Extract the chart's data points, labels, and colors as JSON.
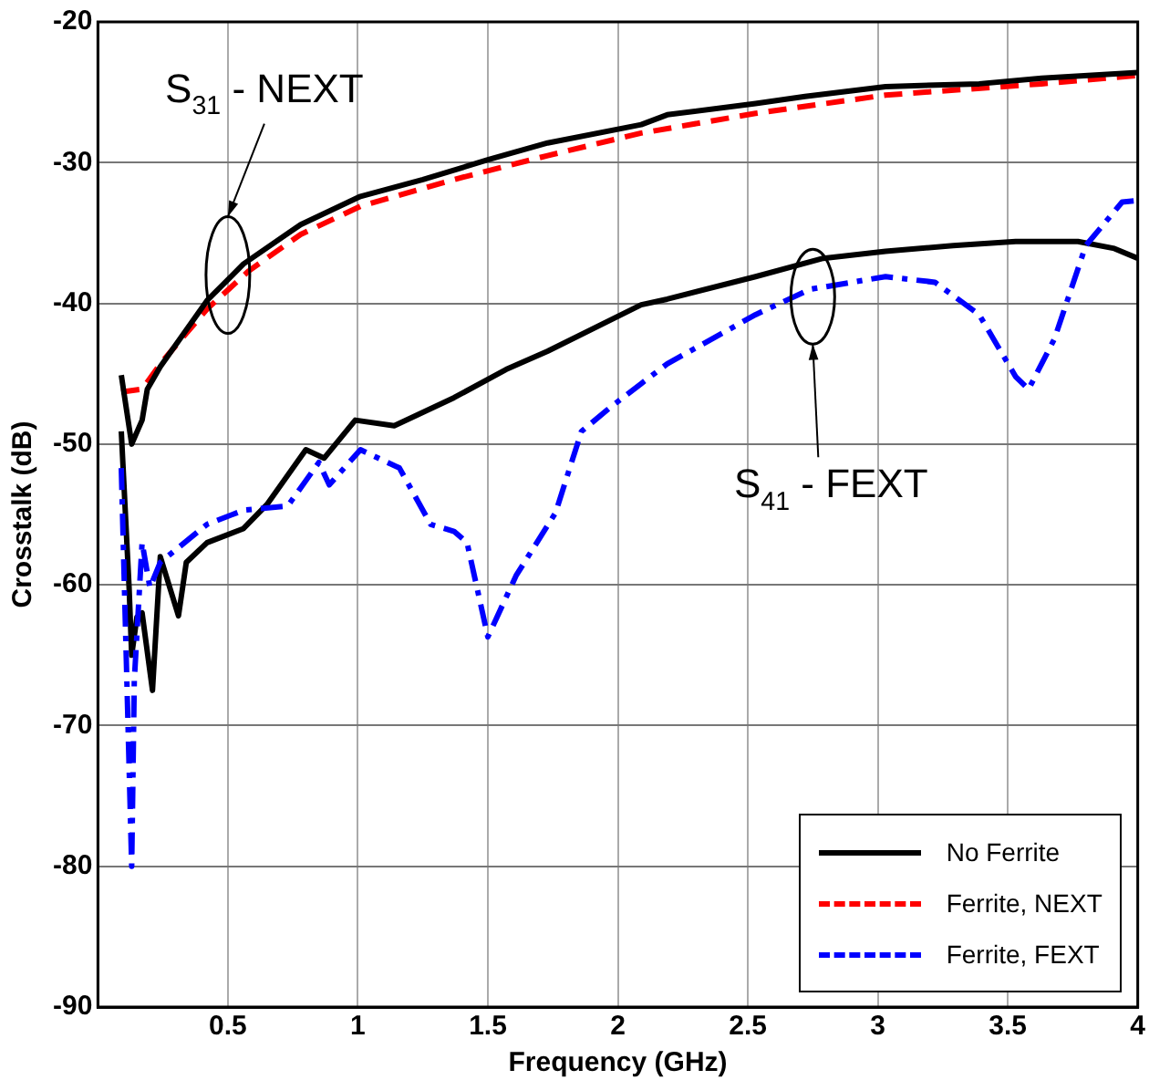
{
  "chart_data": {
    "type": "line",
    "xlabel": "Frequency (GHz)",
    "ylabel": "Crosstalk (dB)",
    "xlim": [
      0,
      4
    ],
    "xticks": [
      0.5,
      1,
      1.5,
      2,
      2.5,
      3,
      3.5,
      4
    ],
    "ylim": [
      -90,
      -20
    ],
    "yticks": [
      -90,
      -80,
      -70,
      -60,
      -50,
      -40,
      -30,
      -20
    ],
    "grid": true,
    "legend": "bottom right",
    "marker": "none",
    "series": [
      {
        "name": "No Ferrite",
        "color": "#000000",
        "line_style": "solid",
        "x": [
          0.09,
          0.13,
          0.17,
          0.19,
          0.24,
          0.42,
          0.56,
          0.78,
          1.01,
          1.25,
          1.5,
          1.73,
          2.09,
          2.19,
          2.53,
          2.72,
          3.03,
          3.39,
          3.63,
          4.0
        ],
        "values": [
          -45.1,
          -50,
          -48.3,
          -46.1,
          -44.5,
          -39.8,
          -37.2,
          -34.4,
          -32.4,
          -31.2,
          -29.8,
          -28.6,
          -27.3,
          -26.6,
          -25.8,
          -25.3,
          -24.6,
          -24.4,
          -24,
          -23.6
        ]
      },
      {
        "name": "Ferrite, NEXT",
        "color": "#ff0000",
        "line_style": "dashed",
        "x": [
          0.09,
          0.17,
          0.24,
          0.42,
          0.58,
          0.78,
          1.01,
          1.37,
          1.73,
          2.09,
          2.53,
          3.03,
          3.63,
          4.0
        ],
        "values": [
          -46.3,
          -46.1,
          -44.3,
          -40.4,
          -37.7,
          -35.1,
          -33.1,
          -31.2,
          -29.5,
          -27.9,
          -26.5,
          -25.2,
          -24.4,
          -23.8
        ]
      },
      {
        "name": "Ferrite, FEXT",
        "color": "#0000ff",
        "line_style": "dashdot",
        "x": [
          0.09,
          0.13,
          0.14,
          0.17,
          0.2,
          0.24,
          0.42,
          0.56,
          0.73,
          0.85,
          0.89,
          1.01,
          1.16,
          1.28,
          1.37,
          1.42,
          1.5,
          1.61,
          1.76,
          1.86,
          1.97,
          2.09,
          2.19,
          2.53,
          2.74,
          3.03,
          3.22,
          3.39,
          3.53,
          3.58,
          3.68,
          3.8,
          3.94,
          4.0
        ],
        "values": [
          -51.7,
          -80,
          -66.8,
          -57,
          -60.2,
          -58.4,
          -55.7,
          -54.7,
          -54.4,
          -51.3,
          -52.9,
          -50.4,
          -51.7,
          -55.7,
          -56.2,
          -57,
          -63.7,
          -59.3,
          -54.9,
          -49.1,
          -47.4,
          -45.7,
          -44.3,
          -40.8,
          -39,
          -38.1,
          -38.5,
          -40.8,
          -45.2,
          -46.1,
          -42.5,
          -35.9,
          -32.8,
          -32.7
        ]
      },
      {
        "color": "#000000",
        "line_style": "solid",
        "x": [
          0.09,
          0.12,
          0.13,
          0.15,
          0.17,
          0.21,
          0.24,
          0.31,
          0.34,
          0.42,
          0.56,
          0.65,
          0.8,
          0.87,
          0.99,
          1.14,
          1.37,
          1.57,
          1.73,
          2.09,
          2.19,
          2.53,
          2.79,
          3.03,
          3.29,
          3.53,
          3.77,
          3.91,
          4.0
        ],
        "values": [
          -49.1,
          -60.2,
          -65,
          -62.3,
          -62,
          -67.5,
          -58,
          -62.2,
          -58.4,
          -57,
          -56,
          -54.3,
          -50.4,
          -51,
          -48.3,
          -48.7,
          -46.7,
          -44.7,
          -43.4,
          -40.1,
          -39.7,
          -38.1,
          -36.8,
          -36.3,
          -35.9,
          -35.6,
          -35.6,
          -36.1,
          -36.8
        ]
      }
    ],
    "annotations": [
      "S$_{31}$ - NEXT",
      "S$_{41}$ - FEXT"
    ]
  }
}
